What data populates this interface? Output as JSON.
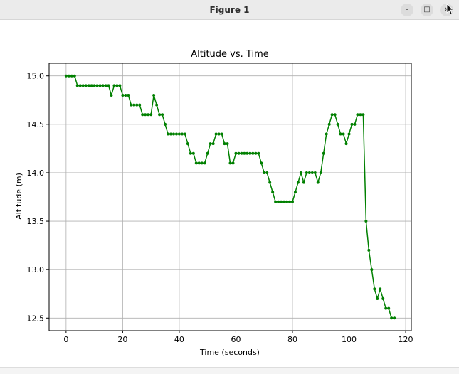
{
  "window": {
    "title": "Figure 1",
    "minimize_glyph": "–",
    "maximize_glyph": "□",
    "close_glyph": "×"
  },
  "chart_data": {
    "type": "line",
    "title": "Altitude vs. Time",
    "xlabel": "Time (seconds)",
    "ylabel": "Altitude (m)",
    "xlim": [
      -6,
      122
    ],
    "ylim": [
      12.37,
      15.13
    ],
    "xticks": [
      0,
      20,
      40,
      60,
      80,
      100,
      120
    ],
    "yticks": [
      12.5,
      13.0,
      13.5,
      14.0,
      14.5,
      15.0
    ],
    "grid": true,
    "line_color": "#008000",
    "marker": "dot",
    "x": [
      0,
      1,
      2,
      3,
      4,
      5,
      6,
      7,
      8,
      9,
      10,
      11,
      12,
      13,
      14,
      15,
      16,
      17,
      18,
      19,
      20,
      21,
      22,
      23,
      24,
      25,
      26,
      27,
      28,
      29,
      30,
      31,
      32,
      33,
      34,
      35,
      36,
      37,
      38,
      39,
      40,
      41,
      42,
      43,
      44,
      45,
      46,
      47,
      48,
      49,
      50,
      51,
      52,
      53,
      54,
      55,
      56,
      57,
      58,
      59,
      60,
      61,
      62,
      63,
      64,
      65,
      66,
      67,
      68,
      69,
      70,
      71,
      72,
      73,
      74,
      75,
      76,
      77,
      78,
      79,
      80,
      81,
      82,
      83,
      84,
      85,
      86,
      87,
      88,
      89,
      90,
      91,
      92,
      93,
      94,
      95,
      96,
      97,
      98,
      99,
      100,
      101,
      102,
      103,
      104,
      105,
      106,
      107,
      108,
      109,
      110,
      111,
      112,
      113,
      114,
      115,
      116
    ],
    "y": [
      15.0,
      15.0,
      15.0,
      15.0,
      14.9,
      14.9,
      14.9,
      14.9,
      14.9,
      14.9,
      14.9,
      14.9,
      14.9,
      14.9,
      14.9,
      14.9,
      14.8,
      14.9,
      14.9,
      14.9,
      14.8,
      14.8,
      14.8,
      14.7,
      14.7,
      14.7,
      14.7,
      14.6,
      14.6,
      14.6,
      14.6,
      14.8,
      14.7,
      14.6,
      14.6,
      14.5,
      14.4,
      14.4,
      14.4,
      14.4,
      14.4,
      14.4,
      14.4,
      14.3,
      14.2,
      14.2,
      14.1,
      14.1,
      14.1,
      14.1,
      14.2,
      14.3,
      14.3,
      14.4,
      14.4,
      14.4,
      14.3,
      14.3,
      14.1,
      14.1,
      14.2,
      14.2,
      14.2,
      14.2,
      14.2,
      14.2,
      14.2,
      14.2,
      14.2,
      14.1,
      14.0,
      14.0,
      13.9,
      13.8,
      13.7,
      13.7,
      13.7,
      13.7,
      13.7,
      13.7,
      13.7,
      13.8,
      13.9,
      14.0,
      13.9,
      14.0,
      14.0,
      14.0,
      14.0,
      13.9,
      14.0,
      14.2,
      14.4,
      14.5,
      14.6,
      14.6,
      14.5,
      14.4,
      14.4,
      14.3,
      14.4,
      14.5,
      14.5,
      14.6,
      14.6,
      14.6,
      13.5,
      13.2,
      13.0,
      12.8,
      12.7,
      12.8,
      12.7,
      12.6,
      12.6,
      12.5,
      12.5
    ]
  }
}
